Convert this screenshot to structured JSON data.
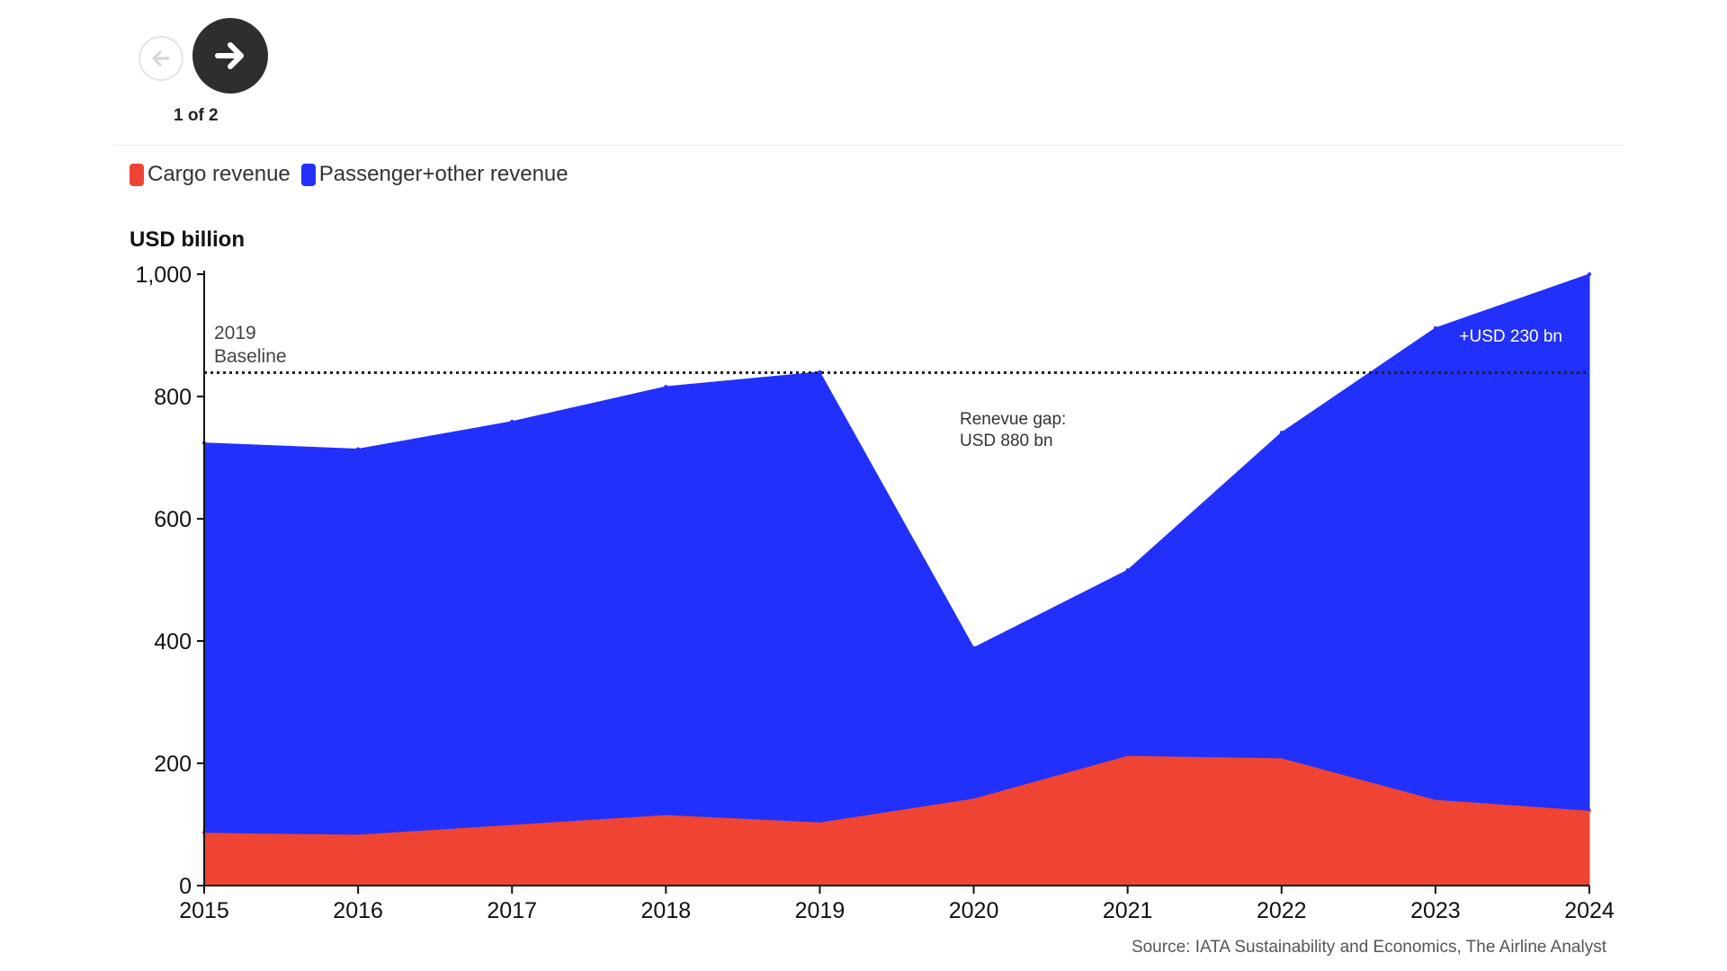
{
  "nav": {
    "pager": "1 of 2"
  },
  "legend": [
    {
      "label": "Cargo revenue",
      "color": "#ef4433"
    },
    {
      "label": "Passenger+other revenue",
      "color": "#2131fb"
    }
  ],
  "source": "Source: IATA Sustainability and Economics, The Airline Analyst",
  "chart_data": {
    "type": "area",
    "stacked": true,
    "ylabel": "USD billion",
    "xlabel": "",
    "ylim": [
      0,
      1000
    ],
    "yticks": [
      "0",
      "200",
      "400",
      "600",
      "800",
      "1,000"
    ],
    "ytick_values": [
      0,
      200,
      400,
      600,
      800,
      1000
    ],
    "x": [
      "2015",
      "2016",
      "2017",
      "2018",
      "2019",
      "2020",
      "2021",
      "2022",
      "2023",
      "2024"
    ],
    "series": [
      {
        "name": "Cargo revenue",
        "color": "#ef4433",
        "values": [
          87,
          84,
          100,
          116,
          104,
          143,
          213,
          209,
          141,
          123
        ]
      },
      {
        "name": "Passenger+other revenue",
        "color": "#2131fb",
        "values": [
          637,
          630,
          659,
          700,
          736,
          246,
          303,
          532,
          771,
          877
        ]
      }
    ],
    "baseline": {
      "value": 839,
      "label_line1": "2019",
      "label_line2": "Baseline",
      "style": "dotted"
    },
    "annotations": [
      {
        "text_line1": "Renevue gap:",
        "text_line2": "USD 880 bn"
      },
      {
        "text": "+USD 230 bn"
      }
    ],
    "grid": false,
    "legend_position": "top-left"
  }
}
